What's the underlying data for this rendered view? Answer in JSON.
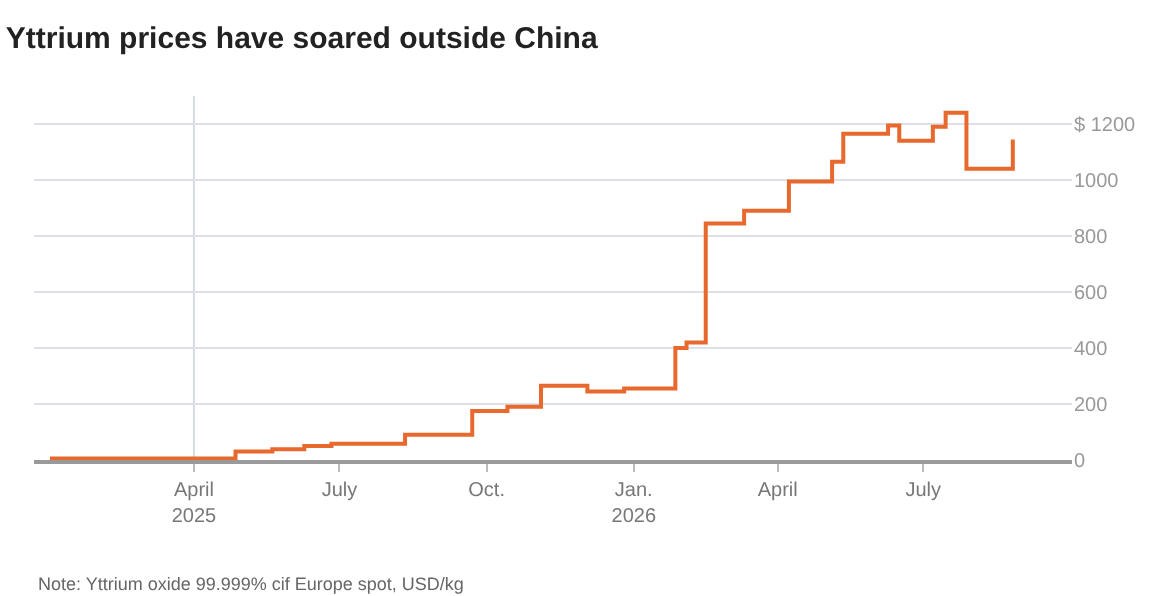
{
  "chart_data": {
    "type": "step",
    "title": "Yttrium prices have soared outside China",
    "x": [
      "2025-01-01",
      "2025-04-27",
      "2025-05-20",
      "2025-06-09",
      "2025-06-26",
      "2025-08-11",
      "2025-09-22",
      "2025-10-14",
      "2025-11-04",
      "2025-12-03",
      "2025-12-26",
      "2026-01-27",
      "2026-02-03",
      "2026-02-15",
      "2026-03-11",
      "2026-04-08",
      "2026-05-05",
      "2026-05-12",
      "2026-06-09",
      "2026-06-16",
      "2026-07-07",
      "2026-07-15",
      "2026-07-28",
      "2026-08-26"
    ],
    "series": [
      {
        "color": "#e8692d",
        "values": [
          5,
          30,
          38,
          50,
          58,
          90,
          175,
          190,
          265,
          245,
          255,
          400,
          420,
          845,
          890,
          995,
          1065,
          1165,
          1195,
          1140,
          1190,
          1240,
          1040,
          1145
        ]
      }
    ],
    "xlim": [
      "2024-12-22",
      "2026-10-02"
    ],
    "xticks": [
      {
        "value": "2025-04-01",
        "label": "April\n2025"
      },
      {
        "value": "2025-07-01",
        "label": "July"
      },
      {
        "value": "2025-10-01",
        "label": "Oct."
      },
      {
        "value": "2026-01-01",
        "label": "Jan.\n2026"
      },
      {
        "value": "2026-04-01",
        "label": "April"
      },
      {
        "value": "2026-07-01",
        "label": "July"
      }
    ],
    "ylim": [
      0,
      1300
    ],
    "yticks": [
      0,
      200,
      400,
      600,
      800,
      1000,
      {
        "value": 1200,
        "label": "$ 1200"
      }
    ],
    "grid": "y",
    "ref_lines": [
      {
        "axis": "x",
        "value": "2025-04-01",
        "color": "#d5dbe3"
      }
    ],
    "annotations": [
      "Note: Yttrium oxide 99.999% cif Europe spot, USD/kg"
    ]
  }
}
